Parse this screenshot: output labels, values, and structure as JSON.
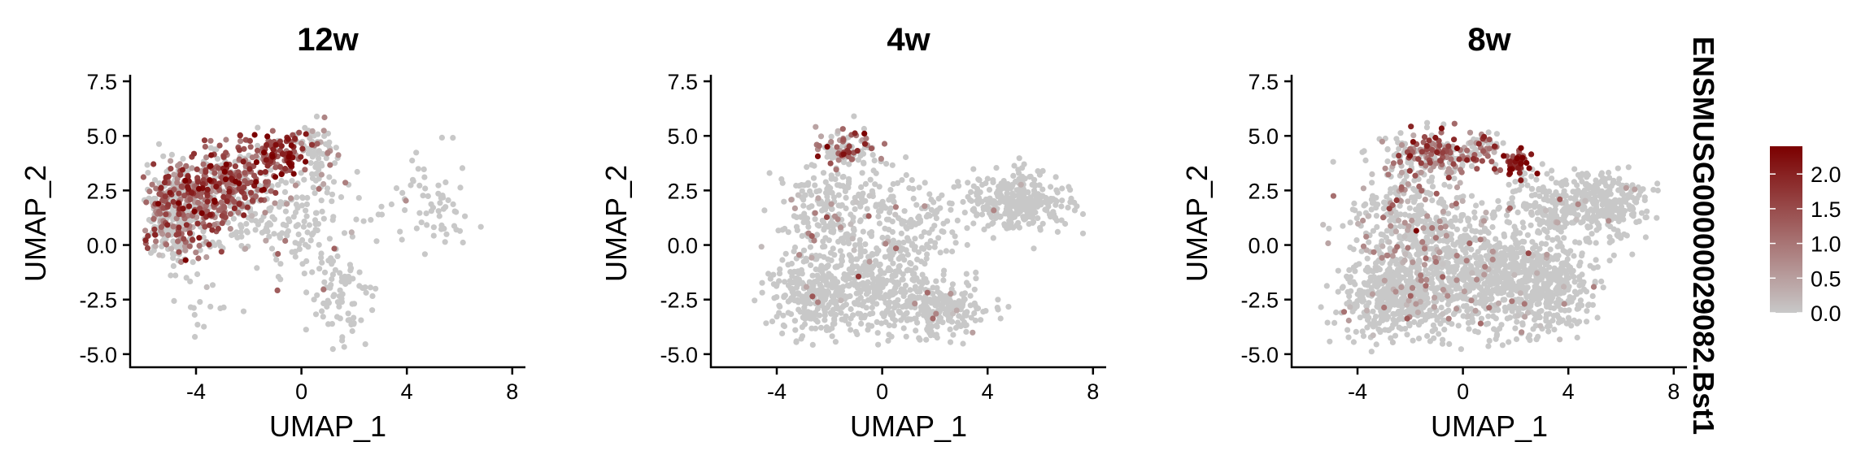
{
  "chart_data": {
    "type": "scatter",
    "color_scale": {
      "title": "ENSMUSG00000029082.Bst1",
      "low_color": "#c8c8c8",
      "high_color": "#7b0000",
      "range": [
        0,
        2.4
      ],
      "ticks": [
        "0.0",
        "0.5",
        "1.0",
        "1.5",
        "2.0"
      ]
    },
    "panels": [
      {
        "title": "12w",
        "xlabel": "UMAP_1",
        "ylabel": "UMAP_2",
        "xlim": [
          -6.5,
          8.5
        ],
        "ylim": [
          -5.6,
          7.8
        ],
        "x_ticks": [
          "-4",
          "0",
          "4",
          "8"
        ],
        "y_ticks": [
          "-5.0",
          "-2.5",
          "0.0",
          "2.5",
          "5.0",
          "7.5"
        ],
        "clusters": [
          {
            "cx": -4.9,
            "cy": 1.2,
            "sx": 0.55,
            "sy": 1.1,
            "n": 260,
            "expr": 0.9
          },
          {
            "cx": -3.8,
            "cy": 2.0,
            "sx": 0.9,
            "sy": 0.9,
            "n": 300,
            "expr": 1.2
          },
          {
            "cx": -2.3,
            "cy": 3.2,
            "sx": 0.9,
            "sy": 0.8,
            "n": 220,
            "expr": 1.3
          },
          {
            "cx": -0.9,
            "cy": 4.3,
            "sx": 0.6,
            "sy": 0.45,
            "n": 90,
            "expr": 1.7
          },
          {
            "cx": 0.6,
            "cy": 3.9,
            "sx": 0.5,
            "sy": 0.8,
            "n": 70,
            "expr": 0.5
          },
          {
            "cx": -1.2,
            "cy": 1.2,
            "sx": 1.2,
            "sy": 0.9,
            "n": 120,
            "expr": 0.3
          },
          {
            "cx": 1.4,
            "cy": -2.2,
            "sx": 0.55,
            "sy": 1.3,
            "n": 80,
            "expr": 0.05
          },
          {
            "cx": 5.0,
            "cy": 2.0,
            "sx": 0.7,
            "sy": 1.0,
            "n": 60,
            "expr": 0.0
          },
          {
            "cx": 1.0,
            "cy": 0.6,
            "sx": 1.3,
            "sy": 1.3,
            "n": 60,
            "expr": 0.05
          },
          {
            "cx": -3.3,
            "cy": -3.0,
            "sx": 0.9,
            "sy": 0.6,
            "n": 14,
            "expr": 0.0
          }
        ]
      },
      {
        "title": "4w",
        "xlabel": "UMAP_1",
        "ylabel": "UMAP_2",
        "xlim": [
          -6.5,
          8.5
        ],
        "ylim": [
          -5.6,
          7.8
        ],
        "x_ticks": [
          "-4",
          "0",
          "4",
          "8"
        ],
        "y_ticks": [
          "-5.0",
          "-2.5",
          "0.0",
          "2.5",
          "5.0",
          "7.5"
        ],
        "clusters": [
          {
            "cx": -1.4,
            "cy": 4.4,
            "sx": 0.65,
            "sy": 0.45,
            "n": 90,
            "expr": 1.0
          },
          {
            "cx": -2.4,
            "cy": 1.2,
            "sx": 0.75,
            "sy": 1.4,
            "n": 160,
            "expr": 0.25
          },
          {
            "cx": -2.6,
            "cy": -2.3,
            "sx": 0.9,
            "sy": 0.9,
            "n": 260,
            "expr": 0.05
          },
          {
            "cx": 0.0,
            "cy": -1.4,
            "sx": 1.2,
            "sy": 1.2,
            "n": 320,
            "expr": 0.05
          },
          {
            "cx": 2.1,
            "cy": -3.0,
            "sx": 0.9,
            "sy": 0.7,
            "n": 220,
            "expr": 0.02
          },
          {
            "cx": 5.2,
            "cy": 2.0,
            "sx": 1.0,
            "sy": 0.7,
            "n": 320,
            "expr": 0.0
          },
          {
            "cx": 1.5,
            "cy": 1.0,
            "sx": 1.0,
            "sy": 1.0,
            "n": 90,
            "expr": 0.05
          },
          {
            "cx": -0.8,
            "cy": 2.3,
            "sx": 0.8,
            "sy": 0.8,
            "n": 80,
            "expr": 0.3
          }
        ]
      },
      {
        "title": "8w",
        "xlabel": "UMAP_1",
        "ylabel": "UMAP_2",
        "xlim": [
          -6.5,
          8.5
        ],
        "ylim": [
          -5.6,
          7.8
        ],
        "x_ticks": [
          "-4",
          "0",
          "4",
          "8"
        ],
        "y_ticks": [
          "-5.0",
          "-2.5",
          "0.0",
          "2.5",
          "5.0",
          "7.5"
        ],
        "clusters": [
          {
            "cx": -1.0,
            "cy": 4.2,
            "sx": 0.9,
            "sy": 0.5,
            "n": 200,
            "expr": 1.0
          },
          {
            "cx": 2.0,
            "cy": 3.7,
            "sx": 0.3,
            "sy": 0.3,
            "n": 40,
            "expr": 1.9
          },
          {
            "cx": 0.8,
            "cy": 4.5,
            "sx": 0.4,
            "sy": 0.4,
            "n": 40,
            "expr": 1.0
          },
          {
            "cx": -1.8,
            "cy": 1.0,
            "sx": 1.2,
            "sy": 1.6,
            "n": 420,
            "expr": 0.4
          },
          {
            "cx": -2.6,
            "cy": -2.4,
            "sx": 1.0,
            "sy": 0.9,
            "n": 420,
            "expr": 0.2
          },
          {
            "cx": 0.8,
            "cy": -1.5,
            "sx": 1.6,
            "sy": 1.3,
            "n": 700,
            "expr": 0.15
          },
          {
            "cx": 3.2,
            "cy": -2.0,
            "sx": 0.8,
            "sy": 0.9,
            "n": 280,
            "expr": 0.05
          },
          {
            "cx": 5.3,
            "cy": 1.9,
            "sx": 0.9,
            "sy": 0.7,
            "n": 260,
            "expr": 0.03
          },
          {
            "cx": 3.0,
            "cy": 1.5,
            "sx": 1.0,
            "sy": 0.9,
            "n": 180,
            "expr": 0.1
          }
        ]
      }
    ]
  }
}
